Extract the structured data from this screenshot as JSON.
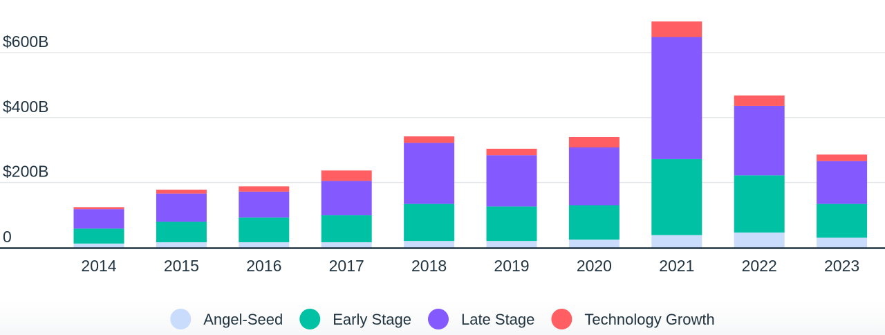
{
  "chart_data": {
    "type": "bar",
    "stacked": true,
    "categories": [
      "2014",
      "2015",
      "2016",
      "2017",
      "2018",
      "2019",
      "2020",
      "2021",
      "2022",
      "2023"
    ],
    "series": [
      {
        "name": "Angel-Seed",
        "color": "#c9dcfb",
        "values": [
          12,
          16,
          16,
          16,
          20,
          20,
          24,
          38,
          46,
          30
        ]
      },
      {
        "name": "Early Stage",
        "color": "#00c1a3",
        "values": [
          46,
          63,
          76,
          83,
          114,
          106,
          106,
          234,
          176,
          104
        ]
      },
      {
        "name": "Late Stage",
        "color": "#8459fd",
        "values": [
          60,
          87,
          80,
          106,
          188,
          158,
          178,
          376,
          214,
          132
        ]
      },
      {
        "name": "Technology Growth",
        "color": "#ff5f63",
        "values": [
          6,
          12,
          16,
          32,
          20,
          20,
          32,
          48,
          32,
          20
        ]
      }
    ],
    "y_ticks": [
      {
        "value": 0,
        "label": "0"
      },
      {
        "value": 200,
        "label": "$200B"
      },
      {
        "value": 400,
        "label": "$400B"
      },
      {
        "value": 600,
        "label": "$600B"
      }
    ],
    "ylim": [
      0,
      700
    ],
    "grid": true,
    "legend_position": "bottom-center"
  }
}
